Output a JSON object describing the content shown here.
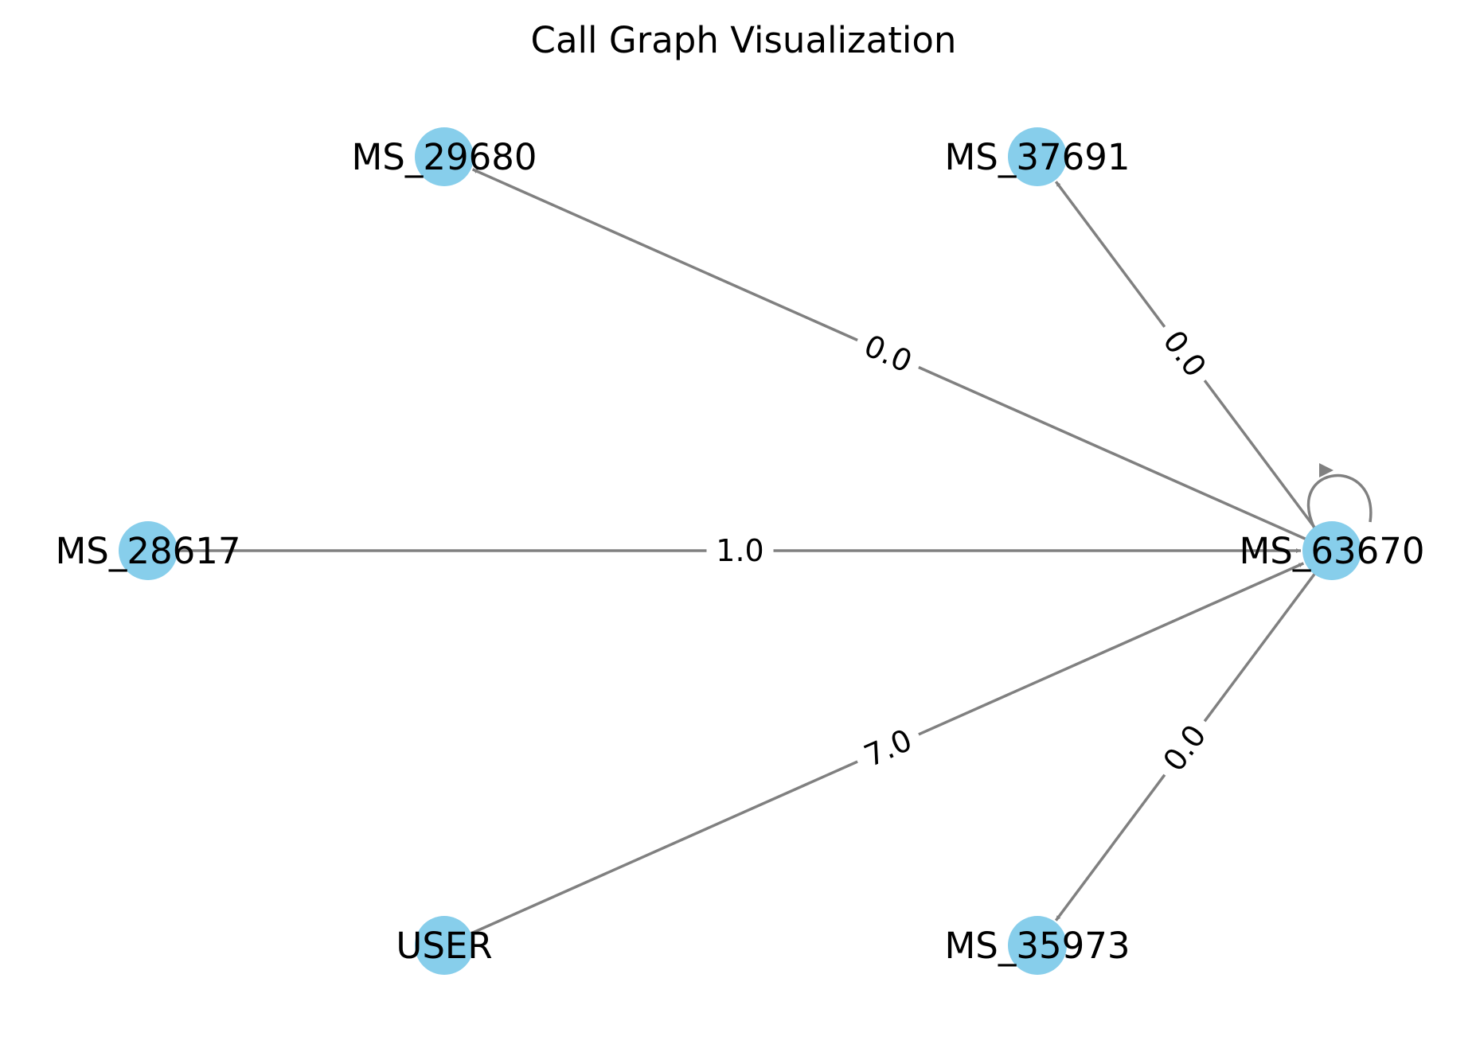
{
  "title": "Call Graph Visualization",
  "colors": {
    "node_fill": "#87ceeb",
    "edge_stroke": "#808080",
    "text": "#000000",
    "background": "#ffffff"
  },
  "nodes": [
    {
      "id": "MS_29680",
      "label": "MS_29680"
    },
    {
      "id": "MS_37691",
      "label": "MS_37691"
    },
    {
      "id": "MS_28617",
      "label": "MS_28617"
    },
    {
      "id": "MS_63670",
      "label": "MS_63670"
    },
    {
      "id": "USER",
      "label": "USER"
    },
    {
      "id": "MS_35973",
      "label": "MS_35973"
    }
  ],
  "edges": [
    {
      "source": "MS_63670",
      "target": "MS_29680",
      "label": "0.0"
    },
    {
      "source": "MS_63670",
      "target": "MS_37691",
      "label": "0.0"
    },
    {
      "source": "MS_28617",
      "target": "MS_63670",
      "label": "1.0"
    },
    {
      "source": "USER",
      "target": "MS_63670",
      "label": "7.0"
    },
    {
      "source": "MS_63670",
      "target": "MS_35973",
      "label": "0.0"
    },
    {
      "source": "MS_63670",
      "target": "MS_63670",
      "label": ""
    }
  ]
}
